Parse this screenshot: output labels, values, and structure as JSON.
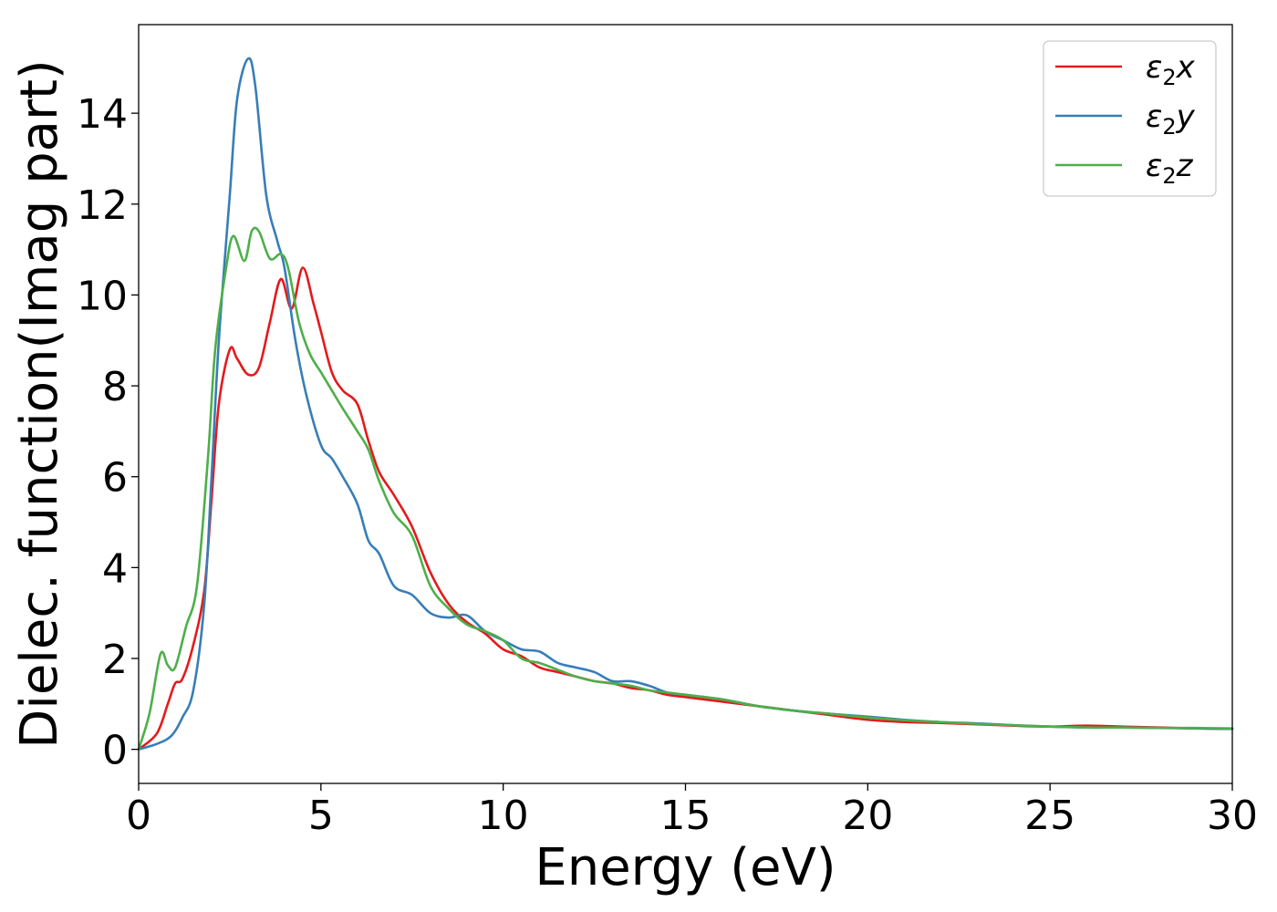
{
  "chart_data": {
    "type": "line",
    "xlabel": "Energy (eV)",
    "ylabel": "Dielec. function(Imag part)",
    "xlim": [
      0,
      30
    ],
    "ylim": [
      -0.75,
      15.95
    ],
    "xticks": [
      0,
      5,
      10,
      15,
      20,
      25,
      30
    ],
    "yticks": [
      0,
      2,
      4,
      6,
      8,
      10,
      12,
      14
    ],
    "xtick_labels": [
      "0",
      "5",
      "10",
      "15",
      "20",
      "25",
      "30"
    ],
    "ytick_labels": [
      "0",
      "2",
      "4",
      "6",
      "8",
      "10",
      "12",
      "14"
    ],
    "grid": false,
    "legend_position": "top-right",
    "series": [
      {
        "name": "ε₂x",
        "legend_base": "ε",
        "legend_sub": "2",
        "legend_var": "x",
        "color": "#e41a1c",
        "x": [
          0,
          0.5,
          0.8,
          1.0,
          1.2,
          1.5,
          1.8,
          2.0,
          2.2,
          2.5,
          2.7,
          3.0,
          3.3,
          3.6,
          3.9,
          4.2,
          4.5,
          4.8,
          5.0,
          5.3,
          5.6,
          6.0,
          6.3,
          6.6,
          7.0,
          7.5,
          8.0,
          8.5,
          9.0,
          9.5,
          10.0,
          10.5,
          11.0,
          11.5,
          12.0,
          12.5,
          13.0,
          13.5,
          14.0,
          14.5,
          15.0,
          16.0,
          17.0,
          18.0,
          19.0,
          20.0,
          21.0,
          22.0,
          23.0,
          24.0,
          25.0,
          26.0,
          27.0,
          28.0,
          29.0,
          30.0
        ],
        "values": [
          0,
          0.35,
          1.0,
          1.45,
          1.55,
          2.3,
          3.5,
          5.5,
          7.6,
          8.8,
          8.6,
          8.25,
          8.4,
          9.4,
          10.35,
          9.7,
          10.6,
          9.8,
          9.2,
          8.3,
          7.9,
          7.6,
          6.8,
          6.1,
          5.6,
          4.9,
          3.9,
          3.2,
          2.8,
          2.55,
          2.2,
          2.05,
          1.8,
          1.7,
          1.6,
          1.5,
          1.45,
          1.35,
          1.3,
          1.2,
          1.15,
          1.05,
          0.95,
          0.85,
          0.75,
          0.65,
          0.6,
          0.58,
          0.55,
          0.52,
          0.5,
          0.52,
          0.5,
          0.48,
          0.46,
          0.45
        ]
      },
      {
        "name": "ε₂y",
        "legend_base": "ε",
        "legend_sub": "2",
        "legend_var": "y",
        "color": "#377eb8",
        "x": [
          0,
          0.5,
          0.9,
          1.2,
          1.5,
          1.8,
          2.0,
          2.2,
          2.5,
          2.7,
          3.0,
          3.2,
          3.5,
          3.8,
          4.0,
          4.3,
          4.6,
          5.0,
          5.3,
          5.6,
          6.0,
          6.3,
          6.6,
          7.0,
          7.5,
          8.0,
          8.5,
          9.0,
          9.5,
          10.0,
          10.5,
          11.0,
          11.5,
          12.0,
          12.5,
          13.0,
          13.5,
          14.0,
          14.5,
          15.0,
          16.0,
          17.0,
          18.0,
          19.0,
          20.0,
          21.0,
          22.0,
          23.0,
          24.0,
          25.0,
          26.0,
          27.0,
          28.0,
          29.0,
          30.0
        ],
        "values": [
          0,
          0.12,
          0.3,
          0.7,
          1.3,
          3.2,
          6.0,
          9.0,
          12.2,
          14.3,
          15.2,
          14.6,
          12.2,
          11.2,
          10.6,
          9.0,
          7.8,
          6.7,
          6.4,
          6.0,
          5.4,
          4.6,
          4.3,
          3.6,
          3.4,
          3.0,
          2.9,
          2.95,
          2.6,
          2.4,
          2.2,
          2.15,
          1.9,
          1.8,
          1.7,
          1.5,
          1.5,
          1.4,
          1.25,
          1.2,
          1.1,
          0.95,
          0.85,
          0.78,
          0.72,
          0.65,
          0.6,
          0.57,
          0.53,
          0.5,
          0.48,
          0.48,
          0.47,
          0.46,
          0.45
        ]
      },
      {
        "name": "ε₂z",
        "legend_base": "ε",
        "legend_sub": "2",
        "legend_var": "z",
        "color": "#4daf4a",
        "x": [
          0,
          0.3,
          0.6,
          0.8,
          1.0,
          1.3,
          1.6,
          1.9,
          2.1,
          2.4,
          2.6,
          2.9,
          3.1,
          3.3,
          3.6,
          3.9,
          4.1,
          4.4,
          4.7,
          5.0,
          5.3,
          5.6,
          6.0,
          6.3,
          6.6,
          7.0,
          7.5,
          8.0,
          8.5,
          9.0,
          9.5,
          10.0,
          10.5,
          11.0,
          11.5,
          12.0,
          12.5,
          13.0,
          13.5,
          14.0,
          14.5,
          15.0,
          16.0,
          17.0,
          18.0,
          19.0,
          20.0,
          21.0,
          22.0,
          23.0,
          24.0,
          25.0,
          26.0,
          27.0,
          28.0,
          29.0,
          30.0
        ],
        "values": [
          0,
          0.8,
          2.1,
          1.85,
          1.8,
          2.7,
          3.6,
          6.4,
          8.8,
          10.6,
          11.3,
          10.75,
          11.4,
          11.4,
          10.8,
          10.9,
          10.6,
          9.4,
          8.7,
          8.3,
          7.9,
          7.5,
          7.0,
          6.6,
          5.9,
          5.2,
          4.7,
          3.6,
          3.1,
          2.75,
          2.6,
          2.4,
          2.0,
          1.9,
          1.75,
          1.6,
          1.5,
          1.45,
          1.4,
          1.3,
          1.25,
          1.2,
          1.1,
          0.95,
          0.85,
          0.78,
          0.7,
          0.64,
          0.6,
          0.56,
          0.53,
          0.5,
          0.48,
          0.48,
          0.47,
          0.47,
          0.46
        ]
      }
    ]
  }
}
